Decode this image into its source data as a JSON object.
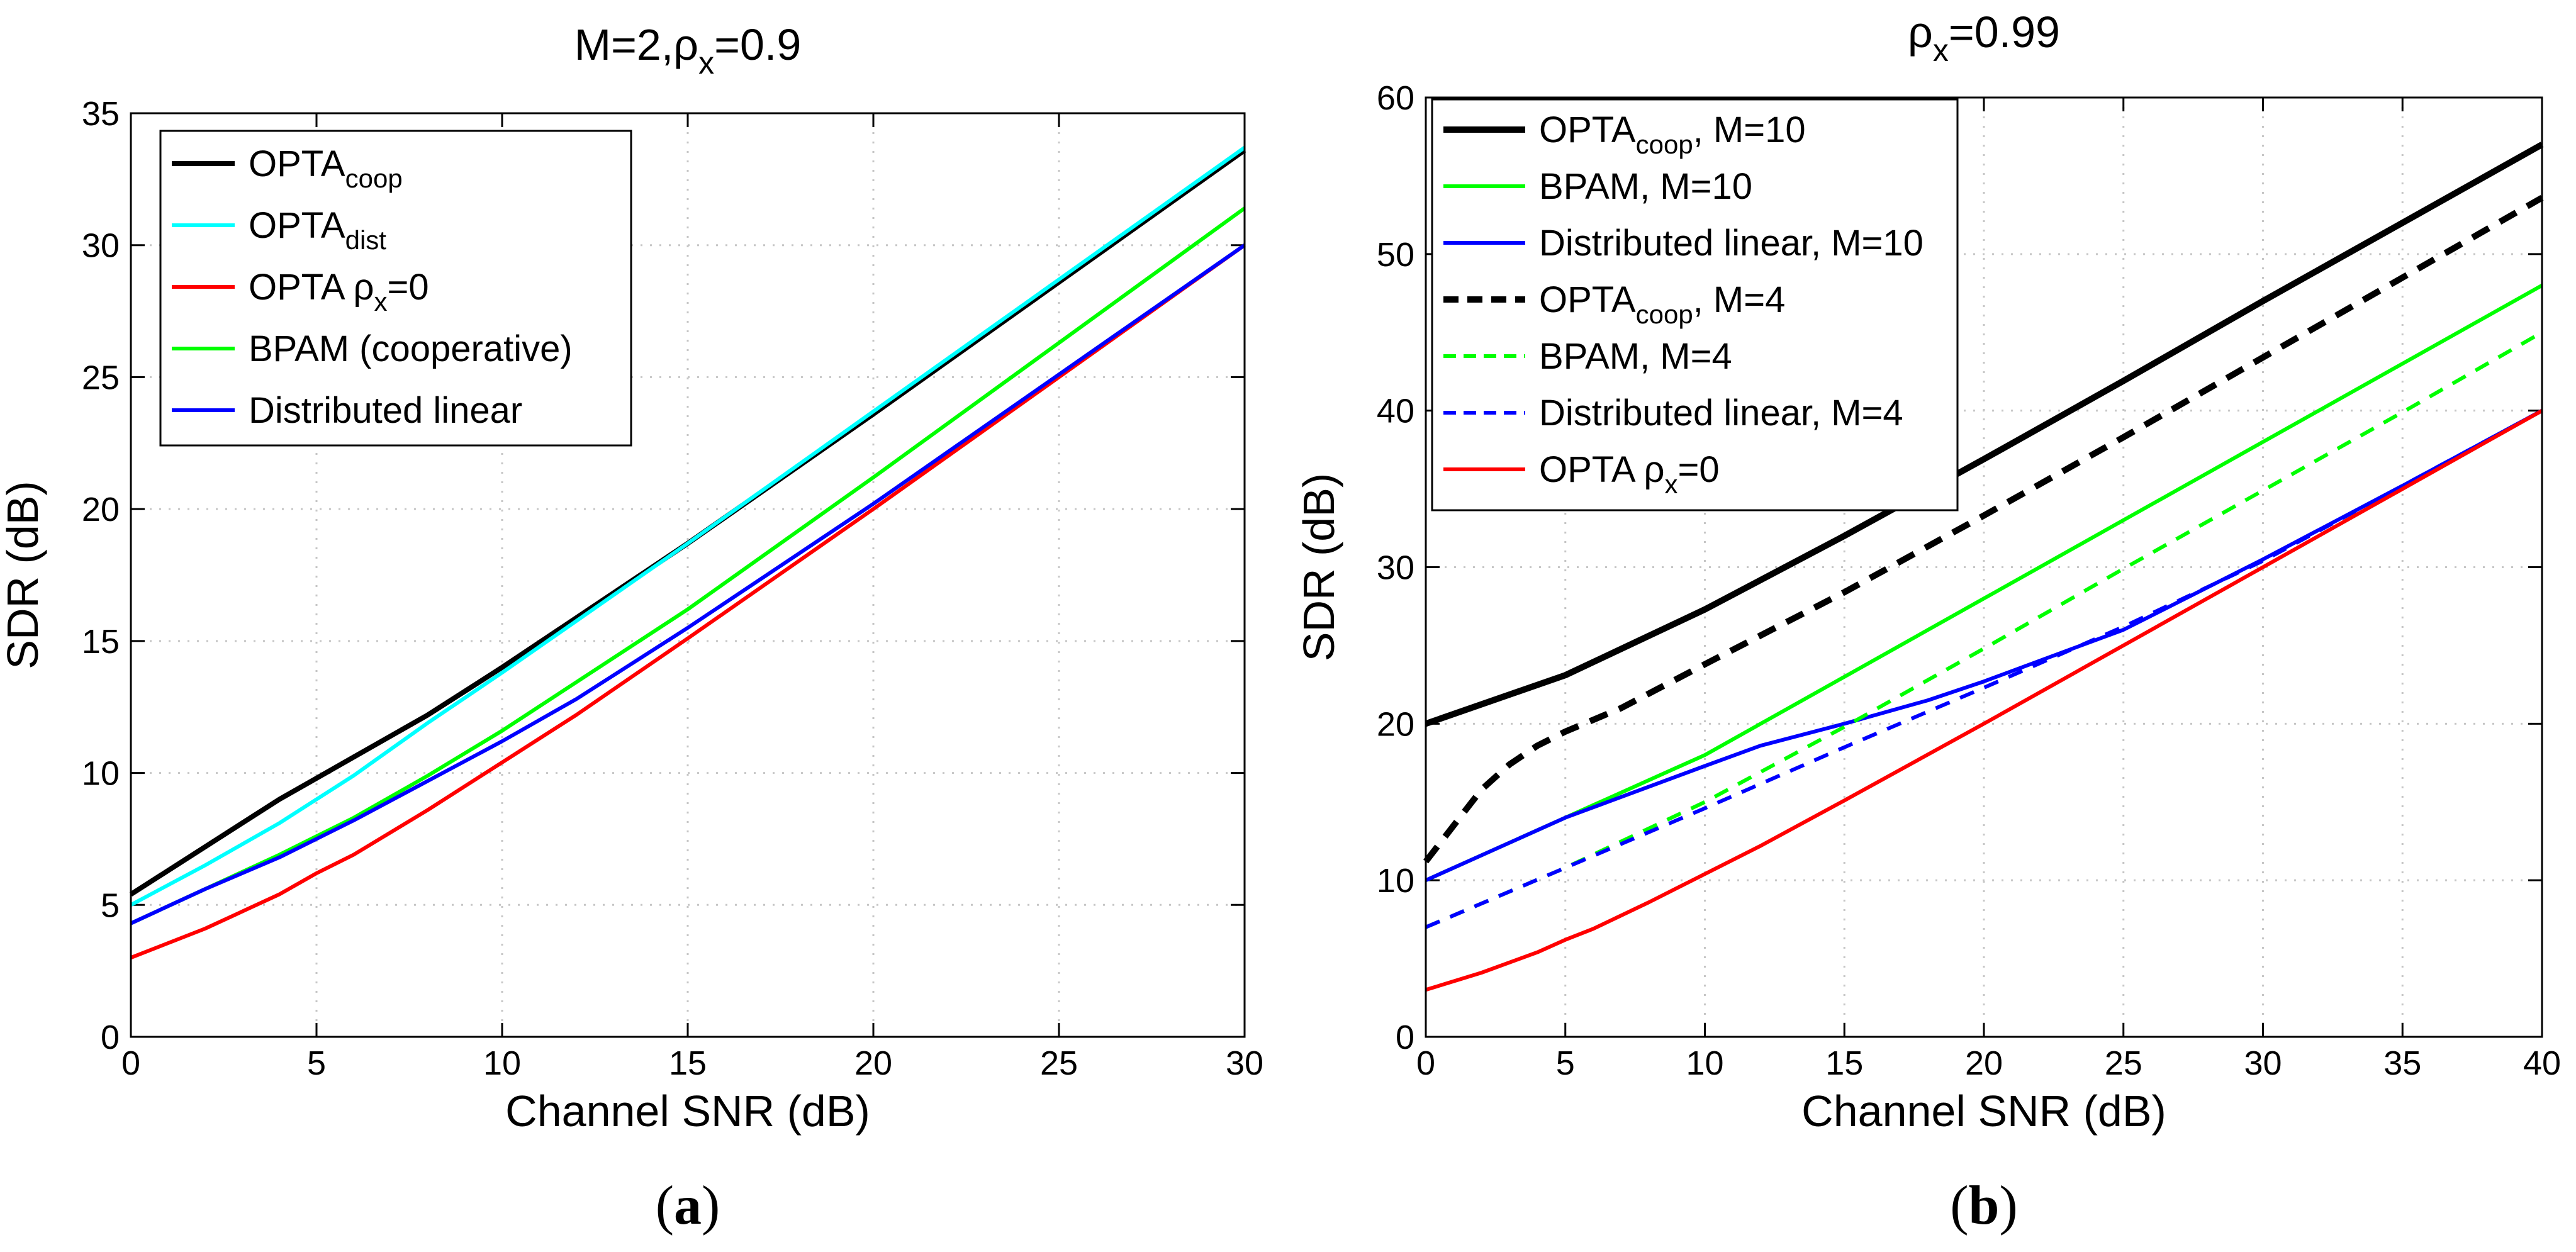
{
  "chart_data": [
    {
      "type": "line",
      "title": "M=2,ρx=0.9",
      "xlabel": "Channel SNR (dB)",
      "ylabel": "SDR (dB)",
      "panel_label": "a",
      "xlim": [
        0,
        30
      ],
      "ylim": [
        0,
        35
      ],
      "xticks": [
        0,
        5,
        10,
        15,
        20,
        25,
        30
      ],
      "yticks": [
        0,
        5,
        10,
        15,
        20,
        25,
        30,
        35
      ],
      "grid": true,
      "legend_position": "top-left",
      "series": [
        {
          "name": "OPTAcoop",
          "legend": {
            "main": "OPTA",
            "sub": "coop",
            "tail": ""
          },
          "color": "#000000",
          "style": "solid",
          "width": 8,
          "x": [
            0,
            2,
            4,
            5,
            6,
            8,
            10,
            15,
            20,
            25,
            30
          ],
          "y": [
            5.4,
            7.2,
            9.0,
            9.8,
            10.6,
            12.2,
            14.0,
            18.7,
            23.6,
            28.6,
            33.6
          ]
        },
        {
          "name": "OPTAdist",
          "legend": {
            "main": "OPTA",
            "sub": "dist",
            "tail": ""
          },
          "color": "#00ffff",
          "style": "solid",
          "width": 6,
          "x": [
            0,
            2,
            4,
            5,
            6,
            8,
            10,
            15,
            20,
            25,
            30
          ],
          "y": [
            5.0,
            6.5,
            8.1,
            9.0,
            9.9,
            11.9,
            13.8,
            18.7,
            23.7,
            28.7,
            33.7
          ]
        },
        {
          "name": "OPTA ρx=0",
          "legend": {
            "main": "OPTA ρ",
            "sub": "x",
            "tail": "=0"
          },
          "color": "#ff0000",
          "style": "solid",
          "width": 6,
          "x": [
            0,
            2,
            4,
            5,
            6,
            8,
            10,
            12,
            15,
            20,
            25,
            30
          ],
          "y": [
            3.0,
            4.1,
            5.4,
            6.2,
            6.9,
            8.6,
            10.4,
            12.2,
            15.1,
            20.0,
            25.0,
            30.0
          ]
        },
        {
          "name": "BPAM (cooperative)",
          "legend": {
            "main": "BPAM (cooperative)",
            "sub": "",
            "tail": ""
          },
          "color": "#00ff00",
          "style": "solid",
          "width": 6,
          "x": [
            0,
            2,
            4,
            5,
            6,
            8,
            10,
            15,
            20,
            25,
            30
          ],
          "y": [
            4.3,
            5.6,
            6.9,
            7.6,
            8.3,
            9.9,
            11.6,
            16.2,
            21.2,
            26.3,
            31.4
          ]
        },
        {
          "name": "Distributed linear",
          "legend": {
            "main": "Distributed linear",
            "sub": "",
            "tail": ""
          },
          "color": "#0000ff",
          "style": "solid",
          "width": 6,
          "x": [
            0,
            2,
            4,
            5,
            6,
            8,
            10,
            12,
            15,
            20,
            25,
            30
          ],
          "y": [
            4.3,
            5.6,
            6.8,
            7.5,
            8.2,
            9.7,
            11.2,
            12.8,
            15.5,
            20.2,
            25.1,
            30.0
          ]
        }
      ]
    },
    {
      "type": "line",
      "title": "ρx=0.99",
      "xlabel": "Channel SNR (dB)",
      "ylabel": "SDR (dB)",
      "panel_label": "b",
      "xlim": [
        0,
        40
      ],
      "ylim": [
        0,
        60
      ],
      "xticks": [
        0,
        5,
        10,
        15,
        20,
        25,
        30,
        35,
        40
      ],
      "yticks": [
        0,
        10,
        20,
        30,
        40,
        50,
        60
      ],
      "grid": true,
      "legend_position": "top-left",
      "series": [
        {
          "name": "OPTAcoop, M=10",
          "legend": {
            "main": "OPTA",
            "sub": "coop",
            "tail": ", M=10"
          },
          "color": "#000000",
          "style": "solid",
          "width": 10,
          "x": [
            0,
            5,
            10,
            15,
            20,
            25,
            30,
            35,
            40
          ],
          "y": [
            20.0,
            23.1,
            27.3,
            32.0,
            36.9,
            41.9,
            47.0,
            52.0,
            57.0
          ]
        },
        {
          "name": "BPAM, M=10",
          "legend": {
            "main": "BPAM, M=10",
            "sub": "",
            "tail": ""
          },
          "color": "#00ff00",
          "style": "solid",
          "width": 6,
          "x": [
            0,
            5,
            10,
            15,
            20,
            25,
            30,
            35,
            40
          ],
          "y": [
            10.0,
            14.0,
            18.0,
            23.0,
            28.0,
            33.0,
            38.0,
            43.0,
            48.0
          ]
        },
        {
          "name": "Distributed linear, M=10",
          "legend": {
            "main": "Distributed linear, M=10",
            "sub": "",
            "tail": ""
          },
          "color": "#0000ff",
          "style": "solid",
          "width": 6,
          "x": [
            0,
            5,
            10,
            12,
            15,
            18,
            20,
            25,
            30,
            35,
            40
          ],
          "y": [
            10.0,
            14.0,
            17.3,
            18.6,
            20.0,
            21.5,
            22.7,
            26.0,
            30.5,
            35.2,
            40.0
          ]
        },
        {
          "name": "OPTAcoop, M=4",
          "legend": {
            "main": "OPTA",
            "sub": "coop",
            "tail": ", M=4"
          },
          "color": "#000000",
          "style": "dashed",
          "width": 10,
          "x": [
            0,
            1,
            2,
            3,
            4,
            5,
            7,
            10,
            15,
            20,
            25,
            30,
            35,
            40
          ],
          "y": [
            11.2,
            13.5,
            15.8,
            17.4,
            18.6,
            19.5,
            21.0,
            23.8,
            28.4,
            33.3,
            38.3,
            43.4,
            48.5,
            53.6
          ]
        },
        {
          "name": "BPAM, M=4",
          "legend": {
            "main": "BPAM, M=4",
            "sub": "",
            "tail": ""
          },
          "color": "#00ff00",
          "style": "dashed",
          "width": 6,
          "x": [
            0,
            5,
            10,
            15,
            20,
            25,
            30,
            35,
            40
          ],
          "y": [
            7.0,
            10.8,
            15.0,
            19.8,
            24.8,
            29.9,
            34.9,
            39.9,
            45.0
          ]
        },
        {
          "name": "Distributed linear, M=4",
          "legend": {
            "main": "Distributed linear, M=4",
            "sub": "",
            "tail": ""
          },
          "color": "#0000ff",
          "style": "dashed",
          "width": 6,
          "x": [
            0,
            5,
            10,
            15,
            20,
            25,
            30,
            35,
            40
          ],
          "y": [
            7.0,
            10.8,
            14.6,
            18.5,
            22.3,
            26.2,
            30.4,
            35.2,
            40.0
          ]
        },
        {
          "name": "OPTA ρx=0",
          "legend": {
            "main": "OPTA ρ",
            "sub": "x",
            "tail": "=0"
          },
          "color": "#ff0000",
          "style": "solid",
          "width": 6,
          "x": [
            0,
            2,
            4,
            5,
            6,
            8,
            10,
            12,
            15,
            20,
            25,
            30,
            35,
            40
          ],
          "y": [
            3.0,
            4.1,
            5.4,
            6.2,
            6.9,
            8.6,
            10.4,
            12.2,
            15.1,
            20.0,
            25.0,
            30.0,
            35.0,
            40.0
          ]
        }
      ]
    }
  ]
}
